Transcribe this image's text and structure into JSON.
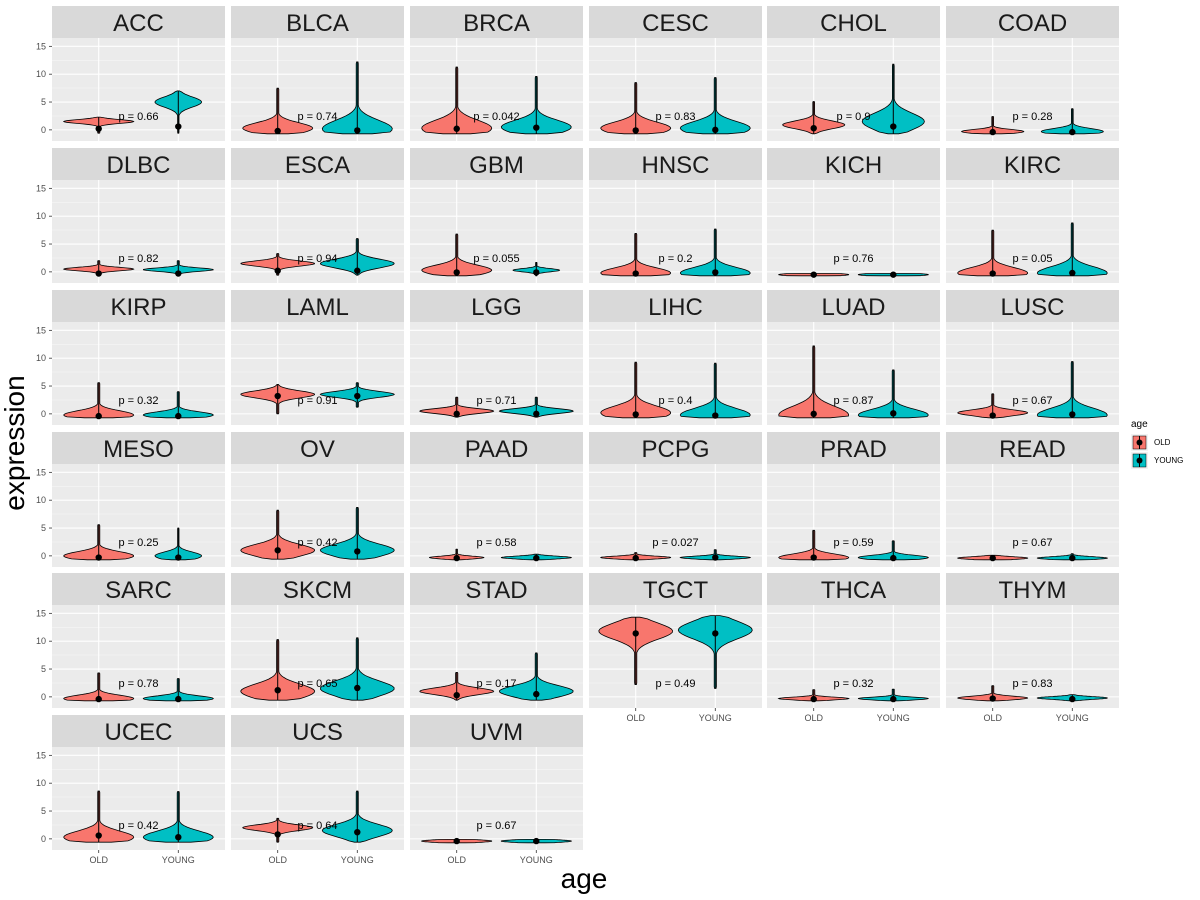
{
  "chart_data": {
    "type": "violin",
    "facet_wrap": true,
    "xlabel": "age",
    "ylabel": "expression",
    "categories": [
      "OLD",
      "YOUNG"
    ],
    "y_ticks": [
      0,
      5,
      10,
      15
    ],
    "ylim": [
      -2,
      16.5
    ],
    "legend": {
      "title": "age",
      "placement": "right",
      "entries": [
        {
          "label": "OLD",
          "color": "#F8766D"
        },
        {
          "label": "YOUNG",
          "color": "#00BFC4"
        }
      ]
    },
    "panels": [
      {
        "name": "ACC",
        "p_label": "p = 0.66",
        "groups": [
          {
            "min": -0.6,
            "max": 2.3,
            "mean": 0.2,
            "peak": 1.5,
            "width": 0.9
          },
          {
            "min": -0.6,
            "max": 7.0,
            "mean": 0.6,
            "peak": 5.0,
            "width": 0.6
          }
        ]
      },
      {
        "name": "BLCA",
        "p_label": "p = 0.74",
        "groups": [
          {
            "min": -0.7,
            "max": 7.5,
            "mean": -0.2,
            "peak": 0.3,
            "width": 0.9
          },
          {
            "min": -0.7,
            "max": 12.2,
            "mean": -0.1,
            "peak": 0.2,
            "width": 0.9
          }
        ]
      },
      {
        "name": "BRCA",
        "p_label": "p = 0.042",
        "groups": [
          {
            "min": -0.7,
            "max": 11.3,
            "mean": 0.2,
            "peak": 0.3,
            "width": 0.9
          },
          {
            "min": -0.7,
            "max": 9.6,
            "mean": 0.4,
            "peak": 0.5,
            "width": 0.9
          }
        ]
      },
      {
        "name": "CESC",
        "p_label": "p = 0.83",
        "groups": [
          {
            "min": -0.7,
            "max": 8.5,
            "mean": -0.1,
            "peak": 0.3,
            "width": 0.9
          },
          {
            "min": -0.7,
            "max": 9.4,
            "mean": 0.0,
            "peak": 0.3,
            "width": 0.9
          }
        ]
      },
      {
        "name": "CHOL",
        "p_label": "p = 0.9",
        "groups": [
          {
            "min": -0.7,
            "max": 5.1,
            "mean": 0.3,
            "peak": 0.9,
            "width": 0.8
          },
          {
            "min": -0.7,
            "max": 11.8,
            "mean": 0.6,
            "peak": 1.5,
            "width": 0.8
          }
        ]
      },
      {
        "name": "COAD",
        "p_label": "p = 0.28",
        "groups": [
          {
            "min": -0.7,
            "max": 2.4,
            "mean": -0.4,
            "peak": -0.3,
            "width": 0.8
          },
          {
            "min": -0.7,
            "max": 3.8,
            "mean": -0.4,
            "peak": -0.3,
            "width": 0.8
          }
        ]
      },
      {
        "name": "DLBC",
        "p_label": "p = 0.82",
        "groups": [
          {
            "min": -0.6,
            "max": 2.0,
            "mean": -0.3,
            "peak": 0.5,
            "width": 0.9
          },
          {
            "min": -0.6,
            "max": 2.0,
            "mean": -0.3,
            "peak": 0.4,
            "width": 0.9
          }
        ]
      },
      {
        "name": "ESCA",
        "p_label": "p = 0.94",
        "groups": [
          {
            "min": -0.6,
            "max": 3.3,
            "mean": 0.2,
            "peak": 1.5,
            "width": 0.95
          },
          {
            "min": -0.6,
            "max": 6.0,
            "mean": 0.2,
            "peak": 1.5,
            "width": 0.95
          }
        ]
      },
      {
        "name": "GBM",
        "p_label": "p = 0.055",
        "groups": [
          {
            "min": -0.7,
            "max": 6.8,
            "mean": -0.1,
            "peak": 0.3,
            "width": 0.9
          },
          {
            "min": -0.7,
            "max": 1.7,
            "mean": -0.1,
            "peak": 0.3,
            "width": 0.6
          }
        ]
      },
      {
        "name": "HNSC",
        "p_label": "p = 0.2",
        "groups": [
          {
            "min": -0.7,
            "max": 6.9,
            "mean": -0.3,
            "peak": -0.2,
            "width": 0.9
          },
          {
            "min": -0.7,
            "max": 7.7,
            "mean": -0.1,
            "peak": -0.2,
            "width": 0.9
          }
        ]
      },
      {
        "name": "KICH",
        "p_label": "p = 0.76",
        "groups": [
          {
            "min": -0.7,
            "max": -0.3,
            "mean": -0.5,
            "peak": -0.5,
            "width": 0.9
          },
          {
            "min": -0.7,
            "max": -0.3,
            "mean": -0.5,
            "peak": -0.5,
            "width": 0.9
          }
        ]
      },
      {
        "name": "KIRC",
        "p_label": "p = 0.05",
        "groups": [
          {
            "min": -0.7,
            "max": 7.5,
            "mean": -0.3,
            "peak": -0.2,
            "width": 0.9
          },
          {
            "min": -0.7,
            "max": 8.8,
            "mean": -0.2,
            "peak": -0.2,
            "width": 0.9
          }
        ]
      },
      {
        "name": "KIRP",
        "p_label": "p = 0.32",
        "groups": [
          {
            "min": -0.7,
            "max": 5.6,
            "mean": -0.4,
            "peak": -0.2,
            "width": 0.9
          },
          {
            "min": -0.7,
            "max": 4.0,
            "mean": -0.4,
            "peak": -0.2,
            "width": 0.9
          }
        ]
      },
      {
        "name": "LAML",
        "p_label": "p = 0.91",
        "groups": [
          {
            "min": 0.0,
            "max": 5.3,
            "mean": 3.2,
            "peak": 3.5,
            "width": 0.95
          },
          {
            "min": 1.2,
            "max": 5.6,
            "mean": 3.2,
            "peak": 3.5,
            "width": 0.95
          }
        ]
      },
      {
        "name": "LGG",
        "p_label": "p = 0.71",
        "groups": [
          {
            "min": -0.6,
            "max": 3.0,
            "mean": 0.0,
            "peak": 0.5,
            "width": 0.95
          },
          {
            "min": -0.6,
            "max": 3.0,
            "mean": 0.0,
            "peak": 0.5,
            "width": 0.95
          }
        ]
      },
      {
        "name": "LIHC",
        "p_label": "p = 0.4",
        "groups": [
          {
            "min": -0.7,
            "max": 9.3,
            "mean": -0.1,
            "peak": 0.2,
            "width": 0.9
          },
          {
            "min": -0.7,
            "max": 9.1,
            "mean": -0.3,
            "peak": -0.2,
            "width": 0.9
          }
        ]
      },
      {
        "name": "LUAD",
        "p_label": "p = 0.87",
        "groups": [
          {
            "min": -0.7,
            "max": 12.2,
            "mean": 0.0,
            "peak": -0.2,
            "width": 0.9
          },
          {
            "min": -0.7,
            "max": 7.9,
            "mean": 0.1,
            "peak": -0.2,
            "width": 0.9
          }
        ]
      },
      {
        "name": "LUSC",
        "p_label": "p = 0.67",
        "groups": [
          {
            "min": -0.7,
            "max": 3.6,
            "mean": -0.3,
            "peak": 0.2,
            "width": 0.9
          },
          {
            "min": -0.7,
            "max": 9.4,
            "mean": -0.1,
            "peak": -0.2,
            "width": 0.9
          }
        ]
      },
      {
        "name": "MESO",
        "p_label": "p = 0.25",
        "groups": [
          {
            "min": -0.7,
            "max": 5.6,
            "mean": -0.3,
            "peak": 0.0,
            "width": 0.9
          },
          {
            "min": -0.7,
            "max": 5.0,
            "mean": -0.3,
            "peak": 0.0,
            "width": 0.6
          }
        ]
      },
      {
        "name": "OV",
        "p_label": "p = 0.42",
        "groups": [
          {
            "min": -0.6,
            "max": 8.2,
            "mean": 1.0,
            "peak": 1.0,
            "width": 0.95
          },
          {
            "min": -0.6,
            "max": 8.7,
            "mean": 0.8,
            "peak": 1.0,
            "width": 0.95
          }
        ]
      },
      {
        "name": "PAAD",
        "p_label": "p = 0.58",
        "groups": [
          {
            "min": -0.7,
            "max": 1.2,
            "mean": -0.4,
            "peak": -0.3,
            "width": 0.7
          },
          {
            "min": -0.7,
            "max": 0.3,
            "mean": -0.4,
            "peak": -0.3,
            "width": 0.9
          }
        ]
      },
      {
        "name": "PCPG",
        "p_label": "p = 0.027",
        "groups": [
          {
            "min": -0.7,
            "max": 0.6,
            "mean": -0.4,
            "peak": -0.3,
            "width": 0.9
          },
          {
            "min": -0.7,
            "max": 1.1,
            "mean": -0.3,
            "peak": -0.3,
            "width": 0.9
          }
        ]
      },
      {
        "name": "PRAD",
        "p_label": "p = 0.59",
        "groups": [
          {
            "min": -0.7,
            "max": 4.6,
            "mean": -0.3,
            "peak": -0.3,
            "width": 0.9
          },
          {
            "min": -0.7,
            "max": 2.7,
            "mean": -0.4,
            "peak": -0.3,
            "width": 0.9
          }
        ]
      },
      {
        "name": "READ",
        "p_label": "p = 0.67",
        "groups": [
          {
            "min": -0.7,
            "max": 0.1,
            "mean": -0.4,
            "peak": -0.4,
            "width": 0.9
          },
          {
            "min": -0.7,
            "max": 0.4,
            "mean": -0.4,
            "peak": -0.4,
            "width": 0.9
          }
        ]
      },
      {
        "name": "SARC",
        "p_label": "p = 0.78",
        "groups": [
          {
            "min": -0.7,
            "max": 4.3,
            "mean": -0.4,
            "peak": -0.3,
            "width": 0.9
          },
          {
            "min": -0.7,
            "max": 3.3,
            "mean": -0.4,
            "peak": -0.3,
            "width": 0.9
          }
        ]
      },
      {
        "name": "SKCM",
        "p_label": "p = 0.65",
        "groups": [
          {
            "min": -0.6,
            "max": 10.3,
            "mean": 1.2,
            "peak": 1.0,
            "width": 0.95
          },
          {
            "min": -0.6,
            "max": 10.6,
            "mean": 1.6,
            "peak": 1.5,
            "width": 0.95
          }
        ]
      },
      {
        "name": "STAD",
        "p_label": "p = 0.17",
        "groups": [
          {
            "min": -0.6,
            "max": 4.4,
            "mean": 0.3,
            "peak": 1.0,
            "width": 0.95
          },
          {
            "min": -0.6,
            "max": 7.9,
            "mean": 0.5,
            "peak": 1.0,
            "width": 0.95
          }
        ]
      },
      {
        "name": "TGCT",
        "p_label": "p = 0.49",
        "groups": [
          {
            "min": 2.2,
            "max": 14.3,
            "mean": 11.4,
            "peak": 11.8,
            "width": 0.95
          },
          {
            "min": 1.5,
            "max": 14.6,
            "mean": 11.4,
            "peak": 12.0,
            "width": 0.95
          }
        ]
      },
      {
        "name": "THCA",
        "p_label": "p = 0.32",
        "groups": [
          {
            "min": -0.7,
            "max": 1.3,
            "mean": -0.4,
            "peak": -0.3,
            "width": 0.9
          },
          {
            "min": -0.7,
            "max": 1.4,
            "mean": -0.4,
            "peak": -0.3,
            "width": 0.9
          }
        ]
      },
      {
        "name": "THYM",
        "p_label": "p = 0.83",
        "groups": [
          {
            "min": -0.7,
            "max": 2.0,
            "mean": -0.3,
            "peak": -0.2,
            "width": 0.9
          },
          {
            "min": -0.7,
            "max": 0.4,
            "mean": -0.4,
            "peak": -0.2,
            "width": 0.9
          }
        ]
      },
      {
        "name": "UCEC",
        "p_label": "p = 0.42",
        "groups": [
          {
            "min": -0.6,
            "max": 8.6,
            "mean": 0.6,
            "peak": 0.3,
            "width": 0.9
          },
          {
            "min": -0.6,
            "max": 8.5,
            "mean": 0.3,
            "peak": 0.3,
            "width": 0.9
          }
        ]
      },
      {
        "name": "UCS",
        "p_label": "p = 0.64",
        "groups": [
          {
            "min": -0.6,
            "max": 3.7,
            "mean": 0.8,
            "peak": 2.0,
            "width": 0.9
          },
          {
            "min": -0.6,
            "max": 8.6,
            "mean": 1.2,
            "peak": 1.5,
            "width": 0.9
          }
        ]
      },
      {
        "name": "UVM",
        "p_label": "p = 0.67",
        "groups": [
          {
            "min": -0.7,
            "max": -0.1,
            "mean": -0.4,
            "peak": -0.4,
            "width": 0.9
          },
          {
            "min": -0.7,
            "max": -0.1,
            "mean": -0.4,
            "peak": -0.4,
            "width": 0.9
          }
        ]
      }
    ]
  }
}
